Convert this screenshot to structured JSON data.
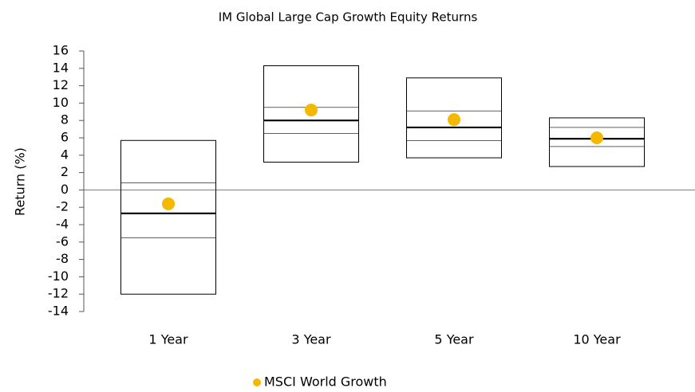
{
  "chart_data": {
    "type": "floating-box",
    "title": "IM Global Large Cap Growth Equity Returns",
    "y_label": "Return (%)",
    "categories": [
      "1 Year",
      "3 Year",
      "5 Year",
      "10 Year"
    ],
    "high": [
      5.7,
      14.3,
      12.9,
      8.3
    ],
    "upper": [
      0.8,
      9.5,
      9.1,
      7.2
    ],
    "median": [
      -2.7,
      8.0,
      7.2,
      5.9
    ],
    "lower": [
      -5.5,
      6.5,
      5.7,
      5.0
    ],
    "low": [
      -12.0,
      3.2,
      3.7,
      2.7
    ],
    "series": [
      {
        "name": "MSCI World Growth",
        "color": "#f5b800",
        "values": [
          -1.6,
          9.2,
          8.1,
          6.0
        ]
      }
    ],
    "ylim": [
      -14,
      16
    ],
    "yticks": [
      -14,
      -12,
      -10,
      -8,
      -6,
      -4,
      -2,
      0,
      2,
      4,
      6,
      8,
      10,
      12,
      14,
      16
    ],
    "legend": "bottom"
  }
}
